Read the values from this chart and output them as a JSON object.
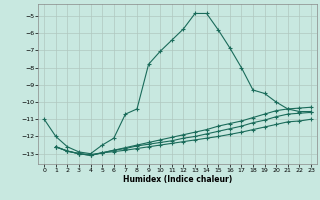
{
  "xlabel": "Humidex (Indice chaleur)",
  "xlim": [
    -0.5,
    23.5
  ],
  "ylim": [
    -13.6,
    -4.3
  ],
  "yticks": [
    -13,
    -12,
    -11,
    -10,
    -9,
    -8,
    -7,
    -6,
    -5
  ],
  "xticks": [
    0,
    1,
    2,
    3,
    4,
    5,
    6,
    7,
    8,
    9,
    10,
    11,
    12,
    13,
    14,
    15,
    16,
    17,
    18,
    19,
    20,
    21,
    22,
    23
  ],
  "bg_color": "#c8e8e0",
  "grid_color": "#b0c8c0",
  "line_color": "#1a6b5a",
  "line1_x": [
    0,
    1,
    2,
    3,
    4,
    5,
    6,
    7,
    8,
    9,
    10,
    11,
    12,
    13,
    14,
    15,
    16,
    17,
    18,
    19,
    20,
    21,
    22,
    23
  ],
  "line1_y": [
    -11.0,
    -12.0,
    -12.6,
    -12.9,
    -13.0,
    -12.5,
    -12.1,
    -10.7,
    -10.4,
    -7.8,
    -7.05,
    -6.4,
    -5.75,
    -4.85,
    -4.85,
    -5.8,
    -6.85,
    -8.0,
    -9.3,
    -9.5,
    -10.0,
    -10.4,
    -10.55,
    -10.55
  ],
  "line2_x": [
    1,
    2,
    3,
    4,
    5,
    6,
    7,
    8,
    9,
    10,
    11,
    12,
    13,
    14,
    15,
    16,
    17,
    18,
    19,
    20,
    21,
    22,
    23
  ],
  "line2_y": [
    -12.6,
    -12.85,
    -13.0,
    -13.1,
    -12.95,
    -12.8,
    -12.65,
    -12.5,
    -12.35,
    -12.2,
    -12.05,
    -11.9,
    -11.75,
    -11.6,
    -11.4,
    -11.25,
    -11.1,
    -10.9,
    -10.7,
    -10.5,
    -10.4,
    -10.35,
    -10.3
  ],
  "line3_x": [
    1,
    2,
    3,
    4,
    5,
    6,
    7,
    8,
    9,
    10,
    11,
    12,
    13,
    14,
    15,
    16,
    17,
    18,
    19,
    20,
    21,
    22,
    23
  ],
  "line3_y": [
    -12.6,
    -12.85,
    -13.0,
    -13.1,
    -12.95,
    -12.8,
    -12.7,
    -12.55,
    -12.45,
    -12.35,
    -12.25,
    -12.1,
    -12.0,
    -11.85,
    -11.7,
    -11.55,
    -11.4,
    -11.2,
    -11.05,
    -10.85,
    -10.7,
    -10.65,
    -10.6
  ],
  "line4_x": [
    1,
    2,
    3,
    4,
    5,
    6,
    7,
    8,
    9,
    10,
    11,
    12,
    13,
    14,
    15,
    16,
    17,
    18,
    19,
    20,
    21,
    22,
    23
  ],
  "line4_y": [
    -12.6,
    -12.85,
    -13.0,
    -13.05,
    -12.95,
    -12.88,
    -12.8,
    -12.7,
    -12.6,
    -12.5,
    -12.4,
    -12.3,
    -12.2,
    -12.1,
    -12.0,
    -11.88,
    -11.75,
    -11.6,
    -11.45,
    -11.3,
    -11.15,
    -11.1,
    -11.0
  ]
}
